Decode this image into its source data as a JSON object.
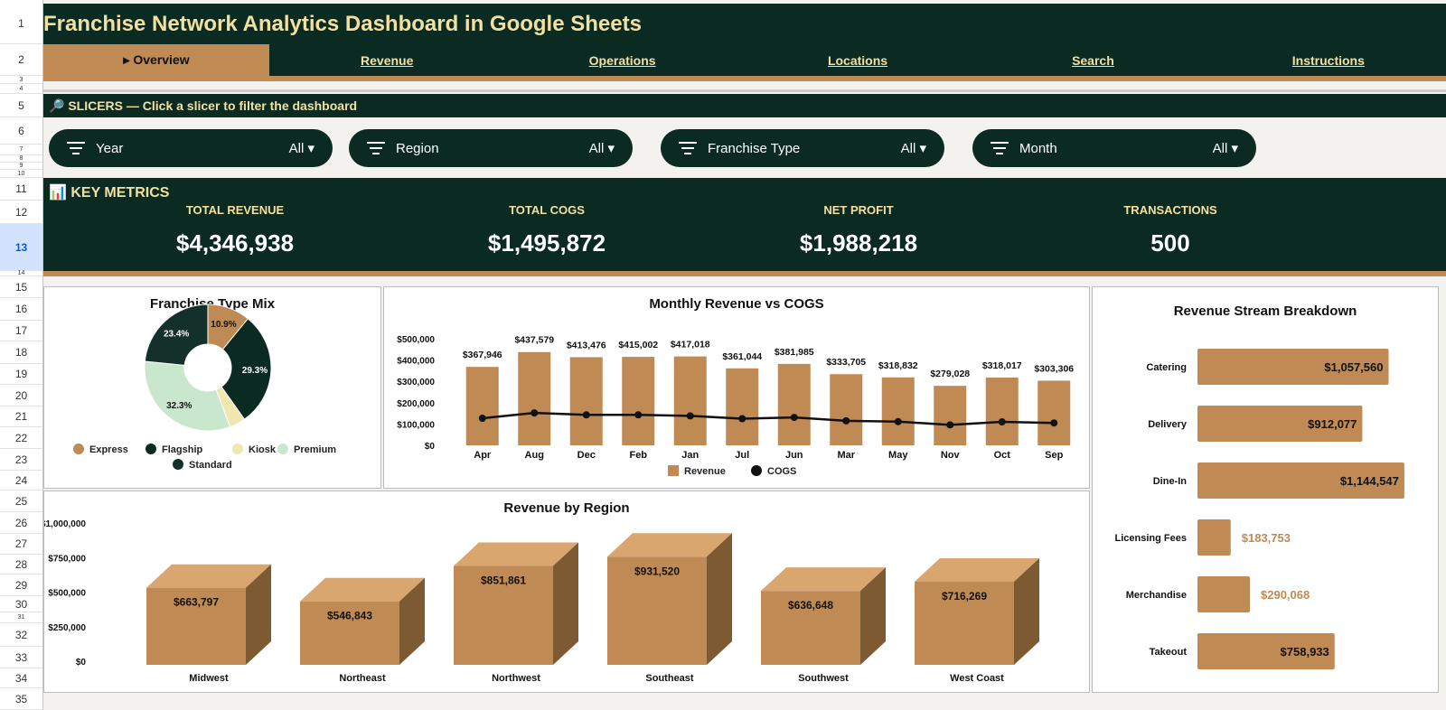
{
  "title": "Franchise Network Analytics Dashboard in Google Sheets",
  "row_numbers": [
    "1",
    "2",
    "3",
    "4",
    "5",
    "6",
    "7",
    "8",
    "9",
    "10",
    "11",
    "12",
    "13",
    "14",
    "15",
    "16",
    "17",
    "18",
    "19",
    "20",
    "21",
    "22",
    "23",
    "24",
    "25",
    "26",
    "27",
    "28",
    "29",
    "30",
    "31",
    "32",
    "33",
    "34",
    "35"
  ],
  "tabs": [
    {
      "label": "▸ Overview",
      "active": true
    },
    {
      "label": "Revenue"
    },
    {
      "label": "Operations"
    },
    {
      "label": "Locations"
    },
    {
      "label": "Search"
    },
    {
      "label": "Instructions"
    }
  ],
  "slicers": {
    "header": "SLICERS — Click a slicer to filter the dashboard",
    "icon": "magnifier-icon",
    "items": [
      {
        "label": "Year",
        "value": "All ▾"
      },
      {
        "label": "Region",
        "value": "All ▾"
      },
      {
        "label": "Franchise Type",
        "value": "All ▾"
      },
      {
        "label": "Month",
        "value": "All ▾"
      }
    ]
  },
  "key_metrics": {
    "header": "KEY METRICS",
    "icon": "bar-chart-icon",
    "items": [
      {
        "label": "TOTAL REVENUE",
        "value": "$4,346,938"
      },
      {
        "label": "TOTAL COGS",
        "value": "$1,495,872"
      },
      {
        "label": "NET PROFIT",
        "value": "$1,988,218"
      },
      {
        "label": "TRANSACTIONS",
        "value": "500"
      }
    ]
  },
  "colors": {
    "dark": "#0b2a22",
    "tan": "#c08a54",
    "gold": "#f3e0a0"
  },
  "chart_data": [
    {
      "type": "pie",
      "title": "Franchise Type Mix",
      "donut": true,
      "slices": [
        {
          "name": "Express",
          "value": 10.9,
          "label": "10.9%",
          "color": "#c08a54"
        },
        {
          "name": "Flagship",
          "value": 29.3,
          "label": "29.3%",
          "color": "#0b2a22"
        },
        {
          "name": "Kiosk",
          "value": 4.1,
          "label": "",
          "color": "#efe6b0"
        },
        {
          "name": "Premium",
          "value": 32.3,
          "label": "32.3%",
          "color": "#c9e7cc"
        },
        {
          "name": "Standard",
          "value": 23.4,
          "label": "23.4%",
          "color": "#13302a"
        }
      ],
      "legend": "bottom"
    },
    {
      "type": "bar",
      "title": "Monthly Revenue vs COGS",
      "categories": [
        "Apr",
        "Aug",
        "Dec",
        "Feb",
        "Jan",
        "Jul",
        "Jun",
        "Mar",
        "May",
        "Nov",
        "Oct",
        "Sep"
      ],
      "series": [
        {
          "name": "Revenue",
          "type": "bar",
          "values": [
            367946,
            437579,
            413476,
            415002,
            417018,
            361044,
            381985,
            333705,
            318832,
            279028,
            318017,
            303306
          ],
          "labels": [
            "$367,946",
            "$437,579",
            "$413,476",
            "$415,002",
            "$417,018",
            "$361,044",
            "$381,985",
            "$333,705",
            "$318,832",
            "$279,028",
            "$318,017",
            "$303,306"
          ]
        },
        {
          "name": "COGS",
          "type": "line",
          "values": [
            127000,
            152000,
            143000,
            143000,
            138000,
            125000,
            131000,
            115000,
            111000,
            96000,
            110000,
            105000
          ]
        }
      ],
      "yticks": [
        "$0",
        "$100,000",
        "$200,000",
        "$300,000",
        "$400,000",
        "$500,000"
      ],
      "ylim": [
        0,
        500000
      ],
      "legend": "bottom"
    },
    {
      "type": "bar",
      "title": "Revenue by Region",
      "style": "3d",
      "categories": [
        "Midwest",
        "Northeast",
        "Northwest",
        "Southeast",
        "Southwest",
        "West Coast"
      ],
      "values": [
        663797,
        546843,
        851861,
        931520,
        636648,
        716269
      ],
      "labels": [
        "$663,797",
        "$546,843",
        "$851,861",
        "$931,520",
        "$636,648",
        "$716,269"
      ],
      "yticks": [
        "$0",
        "$250,000",
        "$500,000",
        "$750,000",
        "$1,000,000"
      ],
      "ylim": [
        0,
        1000000
      ]
    },
    {
      "type": "bar",
      "orientation": "horizontal",
      "title": "Revenue Stream Breakdown",
      "categories": [
        "Catering",
        "Delivery",
        "Dine-In",
        "Licensing Fees",
        "Merchandise",
        "Takeout"
      ],
      "values": [
        1057560,
        912077,
        1144547,
        183753,
        290068,
        758933
      ],
      "labels": [
        "$1,057,560",
        "$912,077",
        "$1,144,547",
        "$183,753",
        "$290,068",
        "$758,933"
      ]
    }
  ]
}
